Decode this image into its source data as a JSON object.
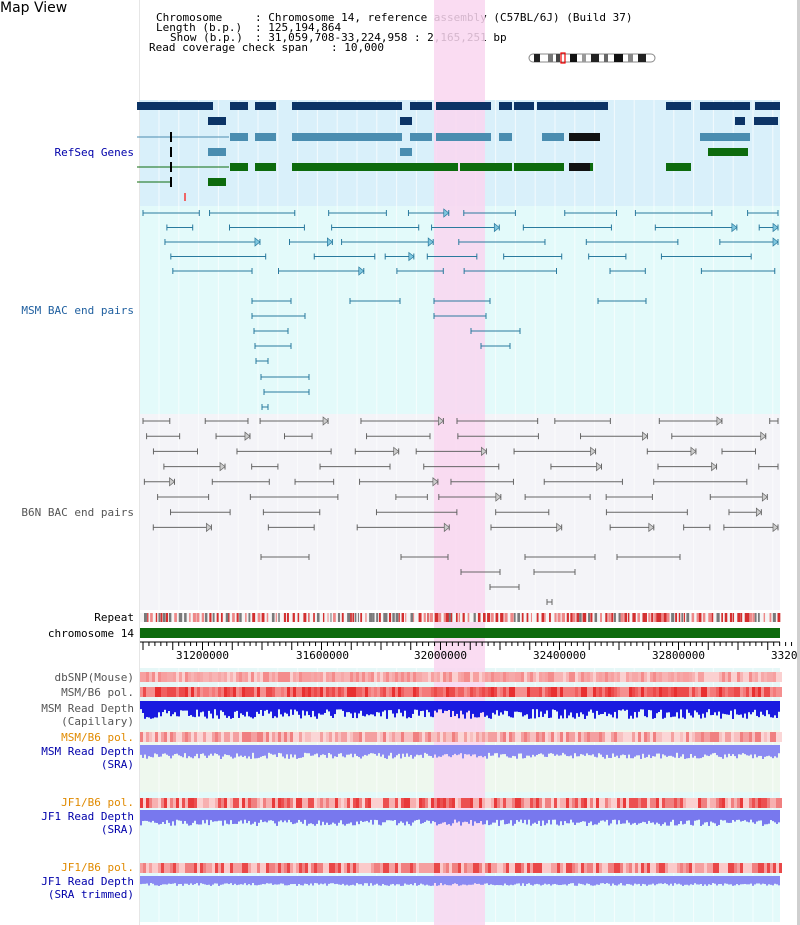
{
  "title": "Map View",
  "info": {
    "chromosome_key": "Chromosome",
    "chromosome_value": ": Chromosome 14, reference assembly (C57BL/6J) (Build 37)",
    "length_key": "Length (b.p.)",
    "length_value": ": 125,194,864",
    "show_key": "Show (b.p.)",
    "show_value": ": 31,059,708-33,224,958 : 2,165,251 bp",
    "coverage_key": "Read coverage check span",
    "coverage_value": ": 10,000"
  },
  "tracks": {
    "refseq": "RefSeq Genes",
    "msm_bac": "MSM BAC end pairs",
    "b6n_bac": "B6N BAC end pairs",
    "repeat": "Repeat",
    "chromosome": "chromosome 14",
    "dbsnp": "dbSNP(Mouse)",
    "msm_b6_pol_1": "MSM/B6 pol.",
    "msm_depth_cap_1": "MSM Read Depth",
    "msm_depth_cap_2": "(Capillary)",
    "msm_b6_pol_2": "MSM/B6 pol.",
    "msm_depth_sra_1": "MSM Read Depth",
    "msm_depth_sra_2": "(SRA)",
    "jf1_b6_pol_1": "JF1/B6 pol.",
    "jf1_depth_sra_1": "JF1 Read Depth",
    "jf1_depth_sra_2": "(SRA)",
    "jf1_b6_pol_2": "JF1/B6 pol.",
    "jf1_depth_trim_1": "JF1 Read Depth",
    "jf1_depth_trim_2": "(SRA trimmed)"
  },
  "ruler": {
    "ticks": [
      "31200000",
      "31600000",
      "32000000",
      "32400000",
      "32800000",
      "3320"
    ]
  },
  "colors": {
    "refseq_bg": "#d9f0fa",
    "msm_bg": "#e3fafa",
    "b6n_bg": "#f4f4f8",
    "highlight": "#f9d6f0",
    "gene_dark": "#0c3466",
    "gene_mid": "#4a8db0",
    "gene_green": "#0d6b0d",
    "msm_line": "#2a7a9e",
    "b6n_line": "#666666",
    "chrom_green": "#0d6b0d",
    "label_blue": "#0000aa",
    "label_orange": "#e08a00",
    "label_teal": "#1f5f9f",
    "label_gray": "#555555"
  }
}
